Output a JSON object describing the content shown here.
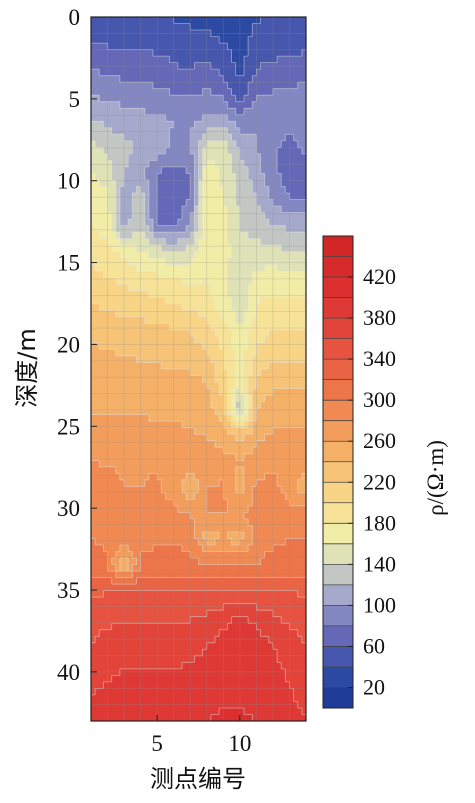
{
  "chart_data": {
    "type": "heatmap",
    "xlabel": "测点编号",
    "ylabel": "深度/m",
    "colorbar_label": "ρ/(Ω·m)",
    "x_range": [
      1,
      14
    ],
    "y_range": [
      0,
      43
    ],
    "y_inverted": true,
    "x_ticks": [
      5,
      10
    ],
    "y_ticks": [
      0,
      5,
      10,
      15,
      20,
      25,
      30,
      35,
      40
    ],
    "colorbar": {
      "min": 0,
      "max": 460,
      "step": 20,
      "tick_labels": [
        20,
        60,
        100,
        140,
        180,
        220,
        260,
        300,
        340,
        380,
        420
      ],
      "colors": [
        "#1f3d98",
        "#2d4aa3",
        "#4657ad",
        "#6468b6",
        "#8488c2",
        "#a5a9cc",
        "#c3c7c4",
        "#dfe2b7",
        "#f1eca6",
        "#f7e397",
        "#f8d486",
        "#f6c377",
        "#f5b068",
        "#f39d5c",
        "#f08a52",
        "#ec764a",
        "#e96445",
        "#e65340",
        "#e3443a",
        "#df3935",
        "#db2f30",
        "#d62a2b",
        "#d12526"
      ]
    },
    "grid": [
      [
        45,
        40,
        38,
        38,
        40,
        38,
        35,
        35,
        30,
        32,
        38,
        40,
        40,
        40
      ],
      [
        62,
        58,
        55,
        55,
        55,
        52,
        48,
        45,
        40,
        30,
        48,
        50,
        52,
        55
      ],
      [
        80,
        75,
        72,
        70,
        68,
        62,
        60,
        65,
        55,
        35,
        60,
        65,
        68,
        70
      ],
      [
        100,
        95,
        92,
        90,
        86,
        80,
        78,
        85,
        75,
        45,
        80,
        82,
        85,
        88
      ],
      [
        122,
        115,
        110,
        108,
        105,
        100,
        98,
        105,
        110,
        90,
        100,
        98,
        90,
        95
      ],
      [
        145,
        135,
        125,
        118,
        110,
        95,
        95,
        150,
        150,
        115,
        100,
        85,
        70,
        85
      ],
      [
        160,
        150,
        120,
        108,
        80,
        70,
        80,
        175,
        155,
        130,
        110,
        85,
        70,
        75
      ],
      [
        175,
        165,
        110,
        130,
        75,
        68,
        80,
        180,
        160,
        135,
        120,
        95,
        80,
        80
      ],
      [
        180,
        170,
        110,
        140,
        80,
        75,
        100,
        180,
        170,
        140,
        130,
        120,
        115,
        115
      ],
      [
        195,
        185,
        175,
        160,
        150,
        140,
        150,
        180,
        170,
        145,
        150,
        145,
        140,
        140
      ],
      [
        205,
        200,
        195,
        190,
        185,
        180,
        175,
        180,
        165,
        145,
        165,
        170,
        170,
        170
      ],
      [
        220,
        215,
        212,
        210,
        205,
        200,
        195,
        190,
        170,
        145,
        180,
        185,
        185,
        185
      ],
      [
        235,
        232,
        230,
        228,
        225,
        222,
        218,
        208,
        190,
        160,
        190,
        200,
        200,
        200
      ],
      [
        245,
        242,
        240,
        238,
        236,
        234,
        232,
        225,
        200,
        170,
        205,
        215,
        215,
        215
      ],
      [
        252,
        250,
        250,
        250,
        248,
        246,
        245,
        240,
        210,
        170,
        225,
        235,
        235,
        235
      ],
      [
        258,
        258,
        258,
        258,
        256,
        256,
        254,
        250,
        225,
        120,
        240,
        250,
        250,
        250
      ],
      [
        268,
        266,
        266,
        266,
        265,
        264,
        262,
        258,
        250,
        230,
        255,
        262,
        262,
        262
      ],
      [
        280,
        278,
        278,
        278,
        278,
        276,
        274,
        272,
        268,
        262,
        270,
        274,
        276,
        276
      ],
      [
        290,
        286,
        280,
        280,
        282,
        272,
        240,
        280,
        282,
        250,
        284,
        286,
        270,
        245
      ],
      [
        292,
        286,
        284,
        284,
        286,
        285,
        278,
        280,
        282,
        280,
        286,
        288,
        287,
        285
      ],
      [
        300,
        298,
        296,
        296,
        298,
        298,
        296,
        250,
        260,
        250,
        290,
        298,
        300,
        300
      ],
      [
        305,
        302,
        235,
        302,
        304,
        305,
        305,
        300,
        300,
        300,
        300,
        305,
        305,
        305
      ],
      [
        335,
        340,
        342,
        340,
        338,
        340,
        340,
        340,
        342,
        340,
        340,
        340,
        340,
        335
      ],
      [
        350,
        354,
        356,
        356,
        355,
        356,
        358,
        362,
        372,
        385,
        372,
        362,
        355,
        350
      ],
      [
        360,
        368,
        370,
        370,
        368,
        370,
        372,
        378,
        388,
        396,
        390,
        380,
        368,
        360
      ],
      [
        370,
        376,
        380,
        380,
        380,
        380,
        382,
        388,
        394,
        398,
        394,
        386,
        376,
        366
      ],
      [
        380,
        385,
        388,
        390,
        390,
        390,
        392,
        395,
        398,
        398,
        396,
        390,
        382,
        372
      ],
      [
        388,
        392,
        396,
        398,
        398,
        398,
        398,
        400,
        402,
        402,
        400,
        394,
        388,
        380
      ]
    ]
  }
}
